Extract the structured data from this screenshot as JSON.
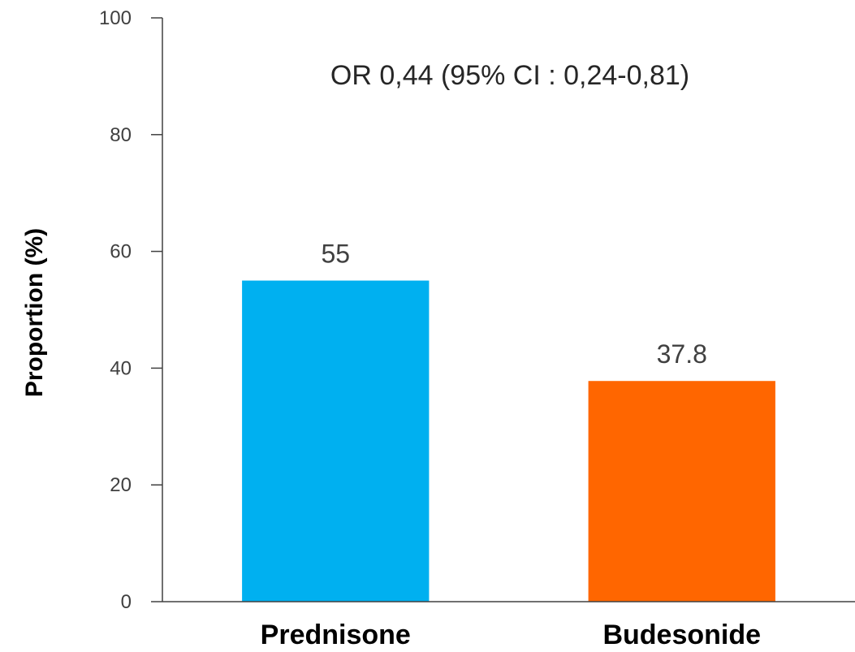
{
  "chart_data": {
    "type": "bar",
    "categories": [
      "Prednisone",
      "Budesonide"
    ],
    "values": [
      55,
      37.8
    ],
    "value_labels": [
      "55",
      "37.8"
    ],
    "colors": [
      "#00B0F0",
      "#FF6600"
    ],
    "title": "",
    "xlabel": "",
    "ylabel": "Proportion (%)",
    "ylim": [
      0,
      100
    ],
    "yticks": [
      0,
      20,
      40,
      60,
      80,
      100
    ],
    "annotation": "OR 0,44 (95% CI : 0,24-0,81)",
    "grid": false,
    "legend": "none"
  }
}
